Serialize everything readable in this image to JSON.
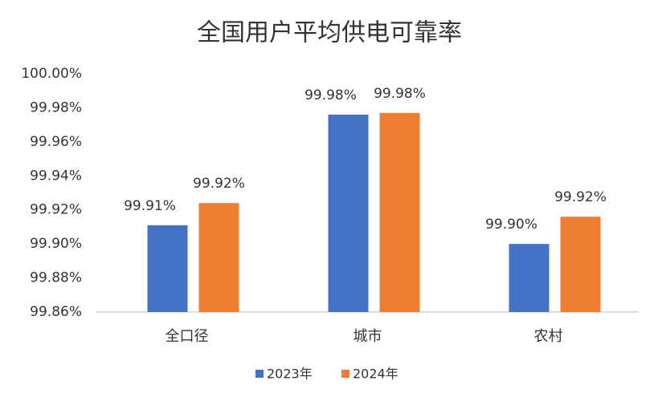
{
  "chart_data": {
    "type": "bar",
    "title": "全国用户平均供电可靠率",
    "categories": [
      "全口径",
      "城市",
      "农村"
    ],
    "series": [
      {
        "name": "2023年",
        "color": "#4472c4",
        "values": [
          99.911,
          99.976,
          99.9
        ],
        "value_labels": [
          "99.91%",
          "99.98%",
          "99.90%"
        ]
      },
      {
        "name": "2024年",
        "color": "#ed7d31",
        "values": [
          99.924,
          99.977,
          99.916
        ],
        "value_labels": [
          "99.92%",
          "99.98%",
          "99.92%"
        ]
      }
    ],
    "ylim": [
      99.86,
      100.0
    ],
    "yticks": [
      {
        "value": 99.86,
        "label": "99.86%"
      },
      {
        "value": 99.88,
        "label": "99.88%"
      },
      {
        "value": 99.9,
        "label": "99.90%"
      },
      {
        "value": 99.92,
        "label": "99.92%"
      },
      {
        "value": 99.94,
        "label": "99.94%"
      },
      {
        "value": 99.96,
        "label": "99.96%"
      },
      {
        "value": 99.98,
        "label": "99.98%"
      },
      {
        "value": 100.0,
        "label": "100.00%"
      }
    ],
    "grid": false,
    "legend": "bottom"
  }
}
